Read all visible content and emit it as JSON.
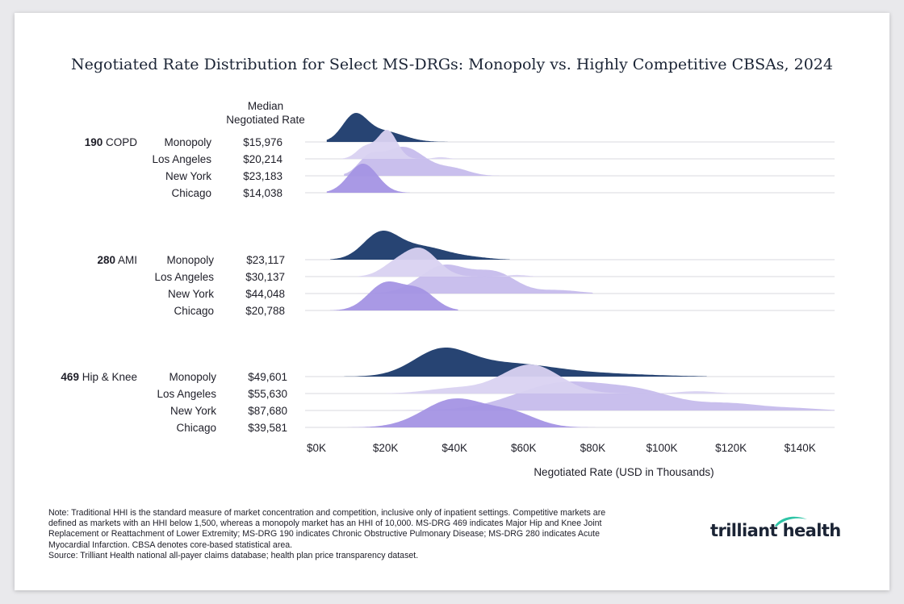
{
  "colors": {
    "monopoly": "#1b3a6b",
    "los_angeles": "#d9d2f1",
    "new_york": "#c6bcec",
    "chicago": "#a493e4",
    "brand_green": "#2ec4a6"
  },
  "chart_data": {
    "type": "ridgeline",
    "title": "Negotiated Rate Distribution for Select MS-DRGs: Monopoly vs. Highly Competitive CBSAs, 2024",
    "median_header": [
      "Median",
      "Negotiated Rate"
    ],
    "xlabel": "Negotiated Rate (USD in Thousands)",
    "xlim": [
      0,
      150000
    ],
    "xticks": [
      {
        "value": 0,
        "label": "$0K"
      },
      {
        "value": 20000,
        "label": "$20K"
      },
      {
        "value": 40000,
        "label": "$40K"
      },
      {
        "value": 60000,
        "label": "$60K"
      },
      {
        "value": 80000,
        "label": "$80K"
      },
      {
        "value": 100000,
        "label": "$100K"
      },
      {
        "value": 120000,
        "label": "$120K"
      },
      {
        "value": 140000,
        "label": "$140K"
      }
    ],
    "groups": [
      {
        "code": "190",
        "name": "COPD",
        "rows": [
          {
            "market": "Monopoly",
            "median": "$15,976",
            "color_key": "monopoly",
            "layer": 0,
            "range": [
              3000,
              38000
            ],
            "bumps": [
              {
                "mu": 11000,
                "sigma": 3500,
                "h": 1.0
              },
              {
                "mu": 19000,
                "sigma": 6000,
                "h": 0.45
              }
            ]
          },
          {
            "market": "Los Angeles",
            "median": "$20,214",
            "color_key": "los_angeles",
            "layer": 2,
            "range": [
              7000,
              44000
            ],
            "bumps": [
              {
                "mu": 20500,
                "sigma": 2800,
                "h": 1.0
              },
              {
                "mu": 14000,
                "sigma": 2500,
                "h": 0.4
              },
              {
                "mu": 36000,
                "sigma": 2000,
                "h": 0.06
              }
            ]
          },
          {
            "market": "New York",
            "median": "$23,183",
            "color_key": "new_york",
            "layer": 1,
            "range": [
              8000,
              53000
            ],
            "bumps": [
              {
                "mu": 25000,
                "sigma": 6500,
                "h": 1.0
              },
              {
                "mu": 15000,
                "sigma": 3000,
                "h": 0.45
              },
              {
                "mu": 40000,
                "sigma": 4500,
                "h": 0.22
              }
            ]
          },
          {
            "market": "Chicago",
            "median": "$14,038",
            "color_key": "chicago",
            "layer": 3,
            "range": [
              3000,
              27000
            ],
            "bumps": [
              {
                "mu": 13500,
                "sigma": 4200,
                "h": 1.0
              }
            ]
          }
        ]
      },
      {
        "code": "280",
        "name": "AMI",
        "rows": [
          {
            "market": "Monopoly",
            "median": "$23,117",
            "color_key": "monopoly",
            "layer": 0,
            "range": [
              4000,
              56000
            ],
            "bumps": [
              {
                "mu": 18500,
                "sigma": 5000,
                "h": 1.0
              },
              {
                "mu": 30000,
                "sigma": 8000,
                "h": 0.55
              },
              {
                "mu": 46000,
                "sigma": 5000,
                "h": 0.06
              }
            ]
          },
          {
            "market": "Los Angeles",
            "median": "$30,137",
            "color_key": "los_angeles",
            "layer": 2,
            "range": [
              12000,
              66000
            ],
            "bumps": [
              {
                "mu": 30000,
                "sigma": 5000,
                "h": 1.0
              },
              {
                "mu": 22000,
                "sigma": 4000,
                "h": 0.3
              },
              {
                "mu": 58000,
                "sigma": 3000,
                "h": 0.06
              }
            ]
          },
          {
            "market": "New York",
            "median": "$44,048",
            "color_key": "new_york",
            "layer": 1,
            "range": [
              10000,
              80000
            ],
            "bumps": [
              {
                "mu": 37000,
                "sigma": 7000,
                "h": 1.0
              },
              {
                "mu": 52000,
                "sigma": 6000,
                "h": 0.7
              },
              {
                "mu": 70000,
                "sigma": 6000,
                "h": 0.12
              }
            ]
          },
          {
            "market": "Chicago",
            "median": "$20,788",
            "color_key": "chicago",
            "layer": 3,
            "range": [
              4000,
              41000
            ],
            "bumps": [
              {
                "mu": 20000,
                "sigma": 5000,
                "h": 1.0
              },
              {
                "mu": 30000,
                "sigma": 4500,
                "h": 0.7
              }
            ]
          }
        ]
      },
      {
        "code": "469",
        "name": "Hip & Knee",
        "rows": [
          {
            "market": "Monopoly",
            "median": "$49,601",
            "color_key": "monopoly",
            "layer": 0,
            "range": [
              8000,
              113000
            ],
            "bumps": [
              {
                "mu": 36000,
                "sigma": 8000,
                "h": 1.0
              },
              {
                "mu": 55000,
                "sigma": 14000,
                "h": 0.55
              },
              {
                "mu": 85000,
                "sigma": 14000,
                "h": 0.1
              }
            ]
          },
          {
            "market": "Los Angeles",
            "median": "$55,630",
            "color_key": "los_angeles",
            "layer": 2,
            "range": [
              20000,
              130000
            ],
            "bumps": [
              {
                "mu": 62000,
                "sigma": 8500,
                "h": 1.0
              },
              {
                "mu": 40000,
                "sigma": 8000,
                "h": 0.18
              },
              {
                "mu": 110000,
                "sigma": 5000,
                "h": 0.08
              }
            ]
          },
          {
            "market": "New York",
            "median": "$87,680",
            "color_key": "new_york",
            "layer": 1,
            "range": [
              22000,
              150000
            ],
            "bumps": [
              {
                "mu": 72000,
                "sigma": 14000,
                "h": 1.0
              },
              {
                "mu": 95000,
                "sigma": 10000,
                "h": 0.5
              },
              {
                "mu": 120000,
                "sigma": 10000,
                "h": 0.25
              },
              {
                "mu": 140000,
                "sigma": 6000,
                "h": 0.06
              }
            ]
          },
          {
            "market": "Chicago",
            "median": "$39,581",
            "color_key": "chicago",
            "layer": 3,
            "range": [
              9000,
              83000
            ],
            "bumps": [
              {
                "mu": 40000,
                "sigma": 9000,
                "h": 1.0
              },
              {
                "mu": 57000,
                "sigma": 7000,
                "h": 0.45
              }
            ]
          }
        ]
      }
    ]
  },
  "note": {
    "lines": [
      "Note: Traditional HHI is the standard measure of market concentration and competition, inclusive only of inpatient settings. Competitive markets are",
      "defined as markets with an HHI below 1,500, whereas a monopoly market has an HHI of 10,000. MS-DRG 469 indicates Major Hip and Knee Joint",
      "Replacement or Reattachment of Lower Extremity; MS-DRG 190 indicates Chronic Obstructive Pulmonary Disease; MS-DRG 280 indicates Acute",
      "Myocardial Infarction. CBSA denotes core-based statistical area.",
      "Source: Trilliant Health national all-payer claims database; health plan price transparency dataset."
    ]
  },
  "logo": {
    "text": "trilliant health"
  }
}
